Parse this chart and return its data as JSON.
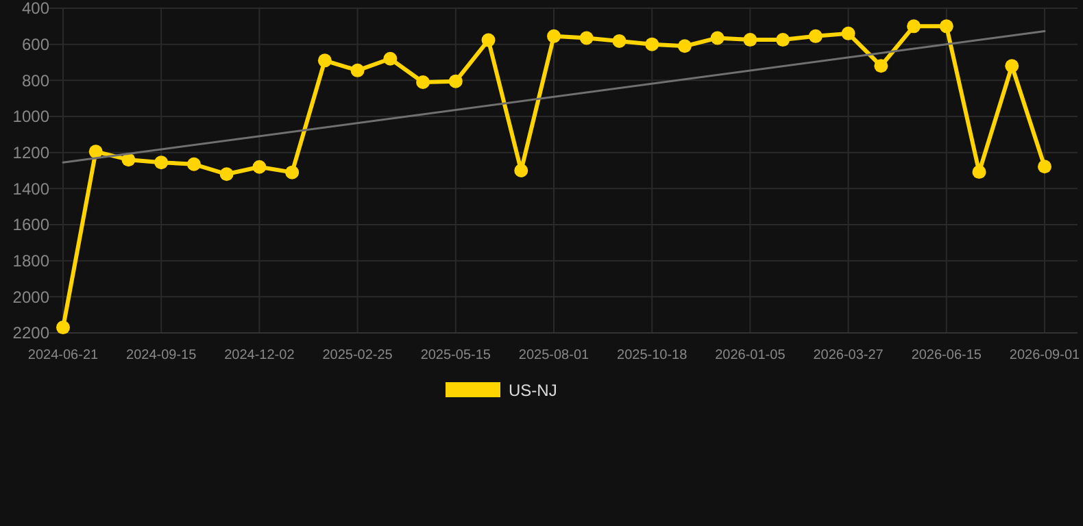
{
  "chart_data": {
    "type": "line",
    "categories": [
      "2024-06-21",
      null,
      null,
      "2024-09-15",
      null,
      null,
      "2024-12-02",
      null,
      null,
      "2025-02-25",
      null,
      null,
      "2025-05-15",
      null,
      null,
      "2025-08-01",
      null,
      null,
      "2025-10-18",
      null,
      null,
      "2026-01-05",
      null,
      null,
      "2026-03-27",
      null,
      null,
      "2026-06-15",
      null,
      null,
      "2026-09-01"
    ],
    "series": [
      {
        "name": "US-NJ",
        "color": "#ffd400",
        "marker": "circle",
        "values": [
          2170,
          1195,
          1240,
          1255,
          1265,
          1320,
          1280,
          1310,
          690,
          745,
          680,
          810,
          805,
          577,
          1300,
          555,
          565,
          582,
          600,
          610,
          565,
          575,
          575,
          555,
          540,
          720,
          500,
          500,
          1308,
          720,
          1278
        ]
      },
      {
        "type": "line",
        "color": "#707070",
        "marker": "none",
        "values": [
          1255,
          null,
          null,
          null,
          null,
          null,
          null,
          null,
          null,
          null,
          null,
          null,
          null,
          null,
          null,
          null,
          null,
          null,
          null,
          null,
          null,
          null,
          null,
          null,
          null,
          null,
          null,
          null,
          null,
          null,
          527
        ]
      }
    ],
    "ylim": [
      2200,
      400
    ],
    "yticks": [
      400,
      600,
      800,
      1000,
      1200,
      1400,
      1600,
      1800,
      2000,
      2200
    ],
    "grid": true,
    "legend": "bottom"
  }
}
